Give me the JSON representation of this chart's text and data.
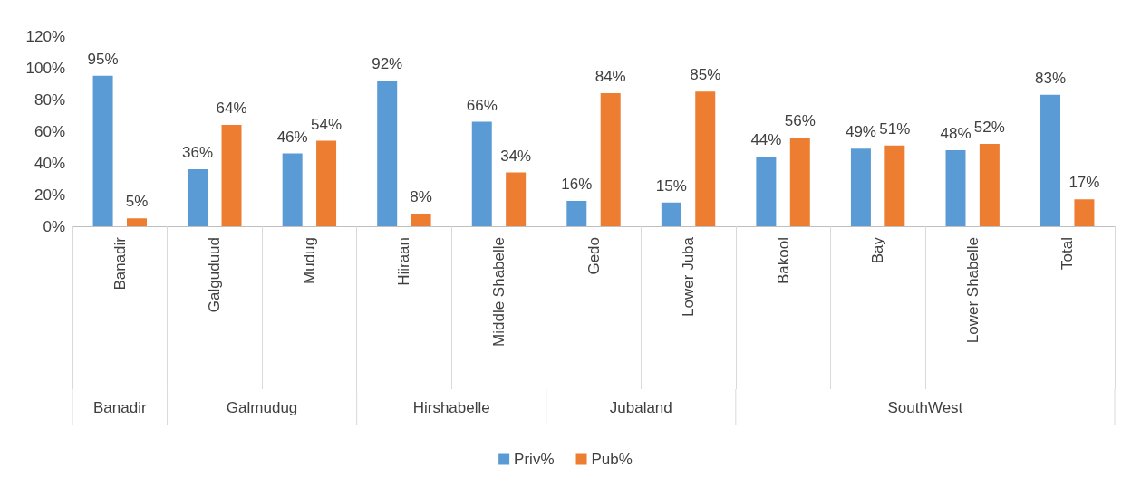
{
  "chart_data": {
    "type": "bar",
    "categories": [
      "Banadir",
      "Galguduud",
      "Mudug",
      "Hiiraan",
      "Middle Shabelle",
      "Gedo",
      "Lower Juba",
      "Bakool",
      "Bay",
      "Lower Shabelle",
      "Total"
    ],
    "series": [
      {
        "name": "Priv%",
        "color": "#5b9bd5",
        "values": [
          95,
          36,
          46,
          92,
          66,
          16,
          15,
          44,
          49,
          48,
          83
        ],
        "value_labels": [
          "95%",
          "36%",
          "46%",
          "92%",
          "66%",
          "16%",
          "15%",
          "44%",
          "49%",
          "48%",
          "83%"
        ]
      },
      {
        "name": "Pub%",
        "color": "#ed7d31",
        "values": [
          5,
          64,
          54,
          8,
          34,
          84,
          85,
          56,
          51,
          52,
          17
        ],
        "value_labels": [
          "5%",
          "64%",
          "54%",
          "8%",
          "34%",
          "84%",
          "85%",
          "56%",
          "51%",
          "52%",
          "17%"
        ]
      }
    ],
    "ylim": [
      0,
      120
    ],
    "yticks": [
      {
        "value": 0,
        "label": "0%"
      },
      {
        "value": 20,
        "label": "20%"
      },
      {
        "value": 40,
        "label": "40%"
      },
      {
        "value": 60,
        "label": "60%"
      },
      {
        "value": 80,
        "label": "80%"
      },
      {
        "value": 100,
        "label": "100%"
      },
      {
        "value": 120,
        "label": "120%"
      }
    ],
    "annotations": [
      "Banadir",
      "Galmudug",
      "Hirshabelle",
      "Jubaland",
      "SouthWest"
    ],
    "grid": false,
    "legend": "bottom"
  }
}
